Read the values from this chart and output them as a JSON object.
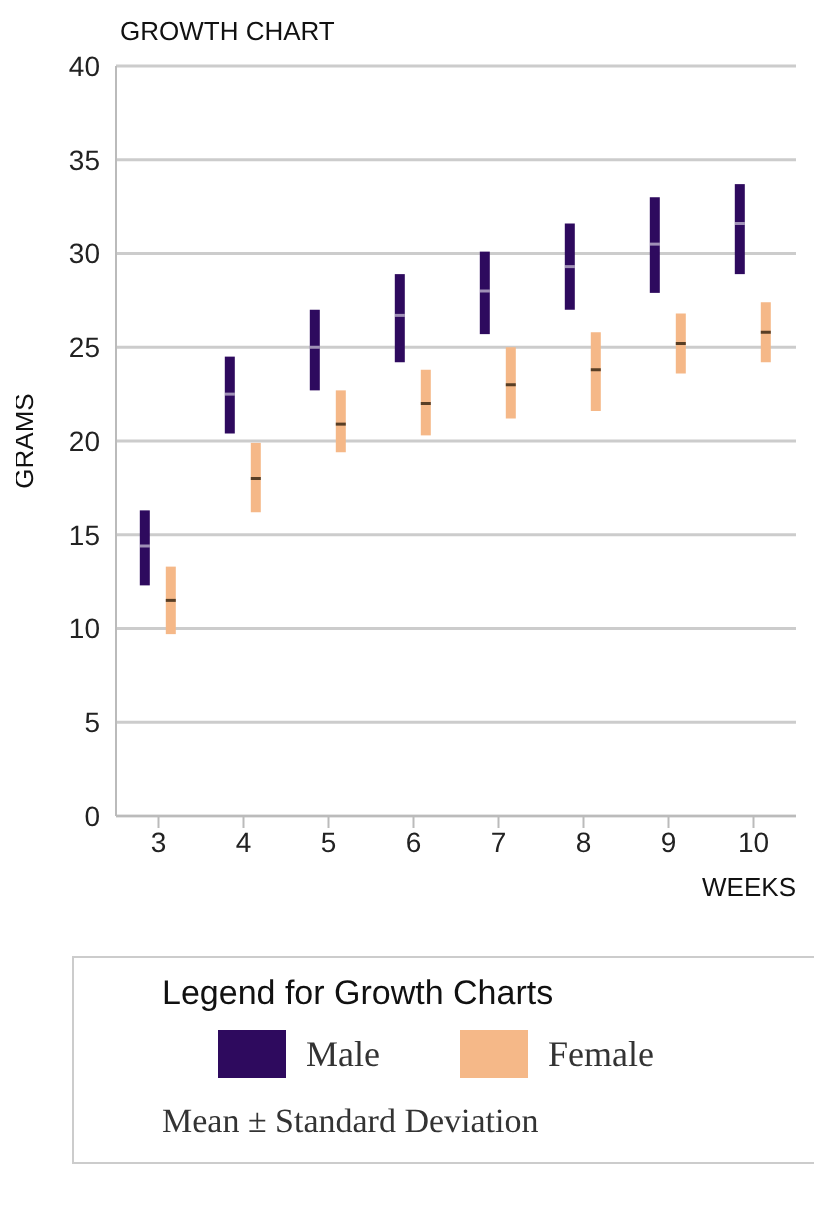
{
  "chart_data": {
    "type": "box",
    "title": "GROWTH CHART",
    "xlabel": "WEEKS",
    "ylabel": "GRAMS",
    "legend_title": "Legend for Growth Charts",
    "categories": [
      "3",
      "4",
      "5",
      "6",
      "7",
      "8",
      "9",
      "10"
    ],
    "series": [
      {
        "name": "Male",
        "color": "#2e0a5e",
        "boxes": [
          {
            "low": 12.3,
            "q1": 12.3,
            "median": 14.4,
            "q3": 16.3,
            "high": 16.3
          },
          {
            "low": 20.4,
            "q1": 20.4,
            "median": 22.5,
            "q3": 24.5,
            "high": 24.5
          },
          {
            "low": 22.7,
            "q1": 22.7,
            "median": 25,
            "q3": 27,
            "high": 27
          },
          {
            "low": 24.2,
            "q1": 24.2,
            "median": 26.7,
            "q3": 28.9,
            "high": 28.9
          },
          {
            "low": 25.7,
            "q1": 25.7,
            "median": 28,
            "q3": 30.1,
            "high": 30.1
          },
          {
            "low": 27,
            "q1": 27,
            "median": 29.3,
            "q3": 31.6,
            "high": 31.6
          },
          {
            "low": 27.9,
            "q1": 27.9,
            "median": 30.5,
            "q3": 33,
            "high": 33
          },
          {
            "low": 28.9,
            "q1": 28.9,
            "median": 31.6,
            "q3": 33.7,
            "high": 33.7
          }
        ]
      },
      {
        "name": "Female",
        "color": "#f5b888",
        "boxes": [
          {
            "low": 9.7,
            "q1": 9.7,
            "median": 11.5,
            "q3": 13.3,
            "high": 13.3
          },
          {
            "low": 16.2,
            "q1": 16.2,
            "median": 18,
            "q3": 19.9,
            "high": 19.9
          },
          {
            "low": 19.4,
            "q1": 19.4,
            "median": 20.9,
            "q3": 22.7,
            "high": 22.7
          },
          {
            "low": 20.3,
            "q1": 20.3,
            "median": 22,
            "q3": 23.8,
            "high": 23.8
          },
          {
            "low": 21.2,
            "q1": 21.2,
            "median": 23,
            "q3": 25,
            "high": 25
          },
          {
            "low": 21.6,
            "q1": 21.6,
            "median": 23.8,
            "q3": 25.8,
            "high": 25.8
          },
          {
            "low": 23.6,
            "q1": 23.6,
            "median": 25.2,
            "q3": 26.8,
            "high": 26.8
          },
          {
            "low": 24.2,
            "q1": 24.2,
            "median": 25.8,
            "q3": 27.4,
            "high": 27.4
          }
        ]
      }
    ],
    "ylim": [
      0,
      40
    ],
    "yticks": [
      0,
      5,
      10,
      15,
      20,
      25,
      30,
      35,
      40
    ],
    "grid": "y",
    "legend": "bottom",
    "annotations": [
      "Mean ± Standard Deviation"
    ]
  }
}
